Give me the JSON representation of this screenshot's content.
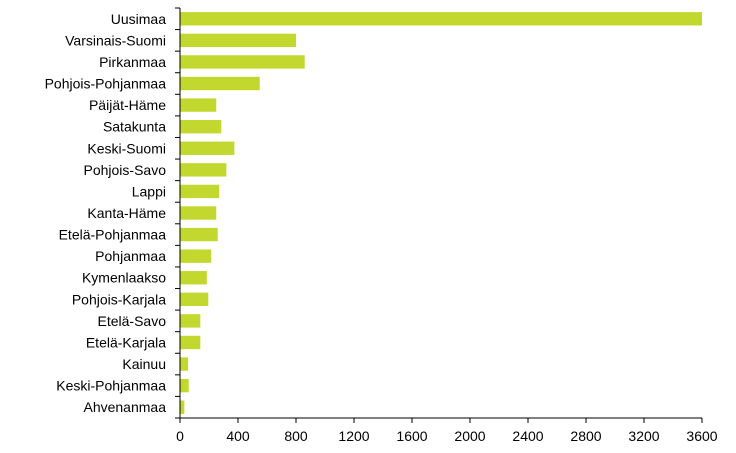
{
  "chart_data": {
    "type": "bar",
    "orientation": "horizontal",
    "title": "",
    "xlabel": "",
    "ylabel": "",
    "xlim": [
      0,
      3600
    ],
    "xticks": [
      "0",
      "400",
      "800",
      "1200",
      "1600",
      "2000",
      "2400",
      "2800",
      "3200",
      "3600"
    ],
    "grid": false,
    "legend": "none",
    "bar_color": "#c3d82e",
    "categories": [
      "Uusimaa",
      "Varsinais-Suomi",
      "Pirkanmaa",
      "Pohjois-Pohjanmaa",
      "Päijät-Häme",
      "Satakunta",
      "Keski-Suomi",
      "Pohjois-Savo",
      "Lappi",
      "Kanta-Häme",
      "Etelä-Pohjanmaa",
      "Pohjanmaa",
      "Kymenlaakso",
      "Pohjois-Karjala",
      "Etelä-Savo",
      "Etelä-Karjala",
      "Kainuu",
      "Keski-Pohjanmaa",
      "Ahvenanmaa"
    ],
    "values": [
      3600,
      800,
      860,
      550,
      250,
      285,
      375,
      320,
      270,
      250,
      260,
      215,
      185,
      195,
      140,
      140,
      55,
      60,
      30
    ]
  }
}
